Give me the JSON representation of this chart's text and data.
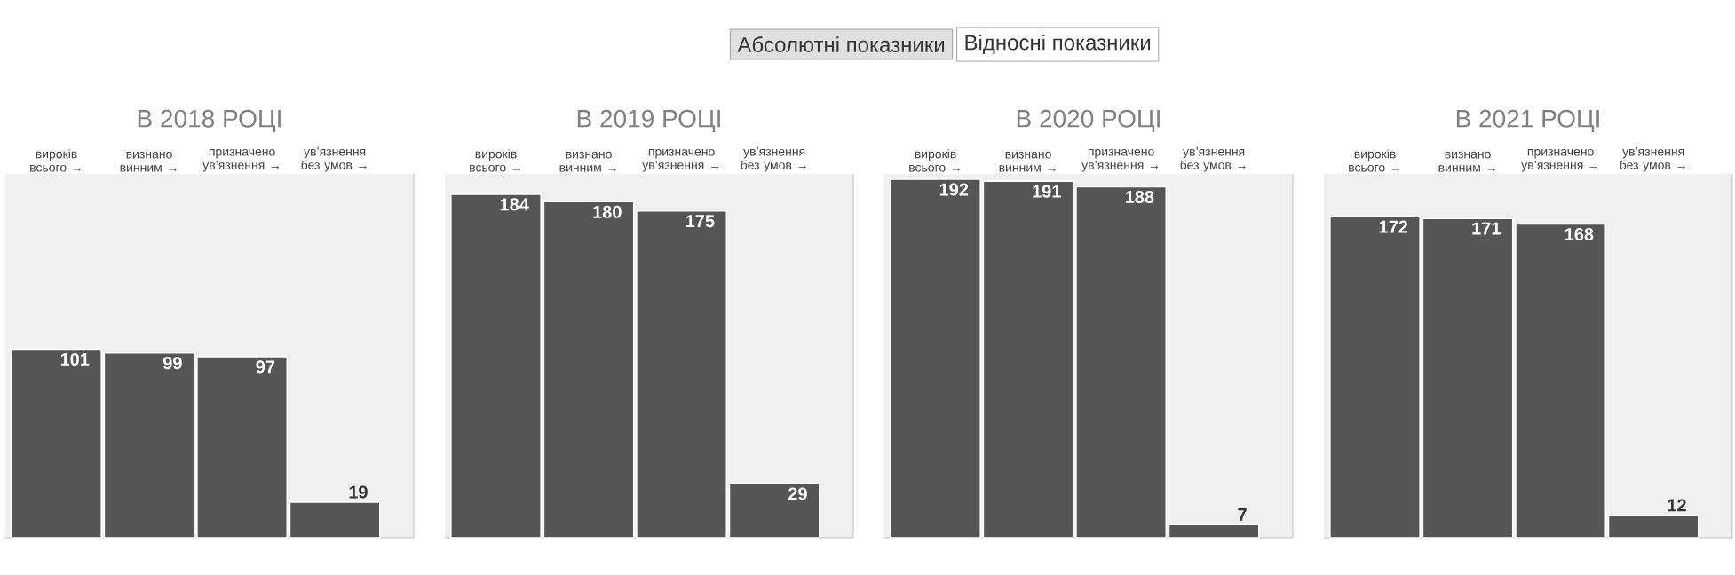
{
  "chart_data": [
    {
      "type": "other",
      "annotations": [
        "Абсолютні показники",
        "Відносні показники"
      ]
    },
    {
      "type": "bar",
      "title": "В 2018 РОЦІ",
      "categories": [
        "вироків всього →",
        "визнано винним →",
        "призначено ув’язнення →",
        "ув’язнення без умов →"
      ],
      "values": [
        101,
        99,
        97,
        19
      ],
      "color": "#555555",
      "data_labels": true
    },
    {
      "type": "bar",
      "title": "В 2019 РОЦІ",
      "categories": [
        "вироків всього →",
        "визнано винним →",
        "призначено ув’язнення →",
        "ув’язнення без умов →"
      ],
      "values": [
        184,
        180,
        175,
        29
      ],
      "color": "#555555",
      "data_labels": true
    },
    {
      "type": "bar",
      "title": "В 2020 РОЦІ",
      "categories": [
        "вироків всього →",
        "визнано винним →",
        "призначено ув’язнення →",
        "ув’язнення без умов →"
      ],
      "values": [
        192,
        191,
        188,
        7
      ],
      "color": "#555555",
      "data_labels": true
    },
    {
      "type": "bar",
      "title": "В 2021 РОЦІ",
      "categories": [
        "вироків всього →",
        "визнано винним →",
        "призначено ув’язнення →",
        "ув’язнення без умов →"
      ],
      "values": [
        172,
        171,
        168,
        12
      ],
      "color": "#555555",
      "data_labels": true
    }
  ]
}
